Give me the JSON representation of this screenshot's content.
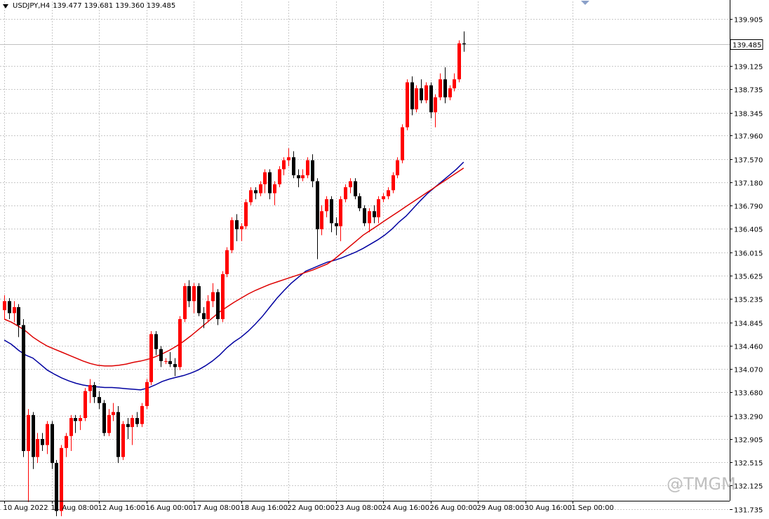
{
  "header": {
    "symbol": "USDJPY,H4",
    "ohlc": "139.477 139.681 139.360 139.485"
  },
  "watermark": "@TMGM",
  "colors": {
    "background": "#ffffff",
    "grid": "#c8c8c8",
    "bull_candle": "#ff0000",
    "bear_candle": "#000000",
    "ma_fast": "#0000a0",
    "ma_slow": "#dd0000",
    "price_line": "#c0c0c0"
  },
  "chart_data": {
    "type": "candlestick",
    "symbol": "USDJPY",
    "timeframe": "H4",
    "grid": true,
    "current_price": "139.485",
    "ylim": [
      131.87,
      140.2
    ],
    "y_ticks": [
      "139.905",
      "139.125",
      "138.735",
      "138.345",
      "137.960",
      "137.570",
      "137.180",
      "136.790",
      "136.405",
      "136.015",
      "135.625",
      "135.235",
      "134.845",
      "134.460",
      "134.070",
      "133.680",
      "133.290",
      "132.905",
      "132.515",
      "132.125",
      "131.735"
    ],
    "x_ticks": [
      {
        "i": 0,
        "label": "10 Aug 2022"
      },
      {
        "i": 10,
        "label": "11 Aug 08:00"
      },
      {
        "i": 20,
        "label": "12 Aug 16:00"
      },
      {
        "i": 30,
        "label": "16 Aug 00:00"
      },
      {
        "i": 40,
        "label": "17 Aug 08:00"
      },
      {
        "i": 50,
        "label": "18 Aug 16:00"
      },
      {
        "i": 60,
        "label": "22 Aug 00:00"
      },
      {
        "i": 70,
        "label": "23 Aug 08:00"
      },
      {
        "i": 80,
        "label": "24 Aug 16:00"
      },
      {
        "i": 90,
        "label": "26 Aug 00:00"
      },
      {
        "i": 100,
        "label": "29 Aug 08:00"
      },
      {
        "i": 110,
        "label": "30 Aug 16:00"
      },
      {
        "i": 120,
        "label": "1 Sep 00:00"
      }
    ],
    "candles": [
      [
        135.05,
        135.3,
        134.9,
        135.2
      ],
      [
        135.2,
        135.25,
        134.9,
        135.0
      ],
      [
        135.0,
        135.2,
        134.85,
        135.1
      ],
      [
        135.1,
        135.15,
        134.6,
        134.8
      ],
      [
        134.8,
        134.9,
        132.6,
        132.7
      ],
      [
        132.7,
        133.4,
        131.85,
        133.3
      ],
      [
        133.3,
        133.35,
        132.4,
        132.6
      ],
      [
        132.6,
        133.0,
        132.5,
        132.9
      ],
      [
        132.9,
        133.0,
        132.7,
        132.8
      ],
      [
        132.8,
        133.2,
        132.65,
        133.15
      ],
      [
        133.15,
        133.2,
        132.4,
        132.5
      ],
      [
        132.5,
        132.55,
        131.6,
        131.7
      ],
      [
        131.7,
        132.8,
        131.55,
        132.75
      ],
      [
        132.75,
        133.0,
        132.6,
        132.95
      ],
      [
        132.95,
        133.3,
        132.7,
        133.25
      ],
      [
        133.25,
        133.3,
        133.0,
        133.2
      ],
      [
        133.2,
        133.3,
        133.05,
        133.25
      ],
      [
        133.25,
        133.75,
        133.2,
        133.7
      ],
      [
        133.7,
        133.9,
        133.5,
        133.8
      ],
      [
        133.8,
        133.85,
        133.5,
        133.6
      ],
      [
        133.6,
        133.7,
        133.4,
        133.5
      ],
      [
        133.5,
        133.55,
        132.95,
        133.0
      ],
      [
        133.0,
        133.4,
        132.95,
        133.3
      ],
      [
        133.3,
        133.5,
        133.2,
        133.35
      ],
      [
        133.35,
        133.45,
        132.5,
        132.6
      ],
      [
        132.6,
        133.2,
        132.55,
        133.15
      ],
      [
        133.15,
        133.25,
        132.9,
        133.1
      ],
      [
        133.1,
        133.3,
        132.8,
        133.25
      ],
      [
        133.25,
        133.35,
        133.1,
        133.15
      ],
      [
        133.15,
        133.5,
        133.1,
        133.45
      ],
      [
        133.45,
        133.9,
        133.4,
        133.85
      ],
      [
        133.85,
        134.7,
        133.8,
        134.65
      ],
      [
        134.65,
        134.7,
        134.3,
        134.4
      ],
      [
        134.4,
        134.45,
        134.1,
        134.2
      ],
      [
        134.2,
        134.25,
        134.15,
        134.2
      ],
      [
        134.2,
        134.35,
        134.1,
        134.15
      ],
      [
        134.15,
        134.25,
        133.95,
        134.1
      ],
      [
        134.1,
        134.95,
        134.05,
        134.9
      ],
      [
        134.9,
        135.5,
        134.85,
        135.45
      ],
      [
        135.45,
        135.55,
        135.1,
        135.2
      ],
      [
        135.2,
        135.5,
        135.0,
        135.45
      ],
      [
        135.45,
        135.5,
        134.95,
        135.0
      ],
      [
        135.0,
        135.1,
        134.75,
        134.9
      ],
      [
        134.9,
        135.3,
        134.85,
        135.2
      ],
      [
        135.2,
        135.5,
        135.1,
        135.35
      ],
      [
        135.35,
        135.4,
        134.8,
        134.9
      ],
      [
        134.9,
        135.7,
        134.85,
        135.65
      ],
      [
        135.65,
        136.1,
        135.6,
        136.05
      ],
      [
        136.05,
        136.6,
        136.0,
        136.55
      ],
      [
        136.55,
        136.65,
        136.2,
        136.4
      ],
      [
        136.4,
        136.5,
        136.2,
        136.45
      ],
      [
        136.45,
        136.9,
        136.4,
        136.85
      ],
      [
        136.85,
        137.1,
        136.8,
        137.05
      ],
      [
        137.05,
        137.1,
        136.9,
        137.0
      ],
      [
        137.0,
        137.2,
        136.95,
        137.15
      ],
      [
        137.15,
        137.4,
        137.0,
        137.35
      ],
      [
        137.35,
        137.4,
        136.9,
        137.0
      ],
      [
        137.0,
        137.2,
        136.8,
        137.15
      ],
      [
        137.15,
        137.45,
        137.1,
        137.4
      ],
      [
        137.4,
        137.6,
        137.3,
        137.55
      ],
      [
        137.55,
        137.75,
        137.45,
        137.6
      ],
      [
        137.6,
        137.7,
        137.25,
        137.3
      ],
      [
        137.3,
        137.4,
        137.1,
        137.25
      ],
      [
        137.25,
        137.4,
        137.2,
        137.3
      ],
      [
        137.3,
        137.6,
        137.25,
        137.55
      ],
      [
        137.55,
        137.65,
        137.1,
        137.2
      ],
      [
        137.2,
        137.25,
        135.9,
        136.4
      ],
      [
        136.4,
        136.8,
        136.3,
        136.7
      ],
      [
        136.7,
        136.95,
        136.6,
        136.9
      ],
      [
        136.9,
        136.95,
        136.35,
        136.5
      ],
      [
        136.5,
        136.6,
        136.3,
        136.45
      ],
      [
        136.45,
        136.95,
        136.2,
        136.9
      ],
      [
        136.9,
        137.15,
        136.85,
        137.1
      ],
      [
        137.1,
        137.25,
        137.0,
        137.2
      ],
      [
        137.2,
        137.25,
        136.9,
        136.95
      ],
      [
        136.95,
        137.0,
        136.7,
        136.75
      ],
      [
        136.75,
        136.8,
        136.45,
        136.5
      ],
      [
        136.5,
        136.75,
        136.35,
        136.7
      ],
      [
        136.7,
        136.8,
        136.5,
        136.6
      ],
      [
        136.6,
        136.95,
        136.5,
        136.9
      ],
      [
        136.9,
        137.0,
        136.85,
        136.95
      ],
      [
        136.95,
        137.1,
        136.9,
        137.05
      ],
      [
        137.05,
        137.35,
        137.0,
        137.3
      ],
      [
        137.3,
        137.6,
        137.25,
        137.55
      ],
      [
        137.55,
        138.15,
        137.5,
        138.1
      ],
      [
        138.1,
        138.9,
        138.05,
        138.85
      ],
      [
        138.85,
        138.95,
        138.3,
        138.4
      ],
      [
        138.4,
        138.8,
        138.35,
        138.75
      ],
      [
        138.75,
        138.9,
        138.5,
        138.55
      ],
      [
        138.55,
        138.85,
        138.5,
        138.8
      ],
      [
        138.8,
        138.85,
        138.25,
        138.35
      ],
      [
        138.35,
        138.65,
        138.1,
        138.6
      ],
      [
        138.6,
        139.0,
        138.55,
        138.9
      ],
      [
        138.9,
        139.1,
        138.5,
        138.6
      ],
      [
        138.6,
        138.8,
        138.55,
        138.75
      ],
      [
        138.75,
        139.0,
        138.7,
        138.9
      ],
      [
        138.9,
        139.55,
        138.85,
        139.5
      ],
      [
        139.5,
        139.7,
        139.36,
        139.485
      ]
    ],
    "series": [
      {
        "role": "moving-average-fast",
        "color": "#0000a0",
        "values": [
          134.55,
          134.48,
          134.38,
          134.3,
          134.25,
          134.15,
          134.05,
          133.98,
          133.92,
          133.87,
          133.83,
          133.8,
          133.78,
          133.77,
          133.76,
          133.76,
          133.75,
          133.74,
          133.73,
          133.72,
          133.75,
          133.8,
          133.86,
          133.9,
          133.93,
          133.96,
          134.0,
          134.05,
          134.12,
          134.2,
          134.3,
          134.42,
          134.52,
          134.6,
          134.7,
          134.82,
          134.95,
          135.1,
          135.25,
          135.38,
          135.5,
          135.6,
          135.7,
          135.75,
          135.8,
          135.85,
          135.88,
          135.92,
          135.97,
          136.02,
          136.08,
          136.15,
          136.22,
          136.3,
          136.4,
          136.52,
          136.62,
          136.75,
          136.88,
          137.0,
          137.1,
          137.2,
          137.3,
          137.4,
          137.52
        ]
      },
      {
        "role": "moving-average-slow",
        "color": "#dd0000",
        "values": [
          134.9,
          134.85,
          134.78,
          134.7,
          134.6,
          134.52,
          134.45,
          134.4,
          134.35,
          134.3,
          134.25,
          134.2,
          134.16,
          134.13,
          134.12,
          134.12,
          134.13,
          134.15,
          134.18,
          134.2,
          134.23,
          134.27,
          134.32,
          134.38,
          134.45,
          134.53,
          134.62,
          134.72,
          134.82,
          134.92,
          135.02,
          135.1,
          135.18,
          135.25,
          135.32,
          135.38,
          135.43,
          135.48,
          135.52,
          135.56,
          135.6,
          135.64,
          135.68,
          135.72,
          135.77,
          135.82,
          135.9,
          136.0,
          136.1,
          136.2,
          136.3,
          136.38,
          136.46,
          136.54,
          136.62,
          136.7,
          136.78,
          136.86,
          136.94,
          137.02,
          137.1,
          137.18,
          137.26,
          137.34,
          137.42
        ]
      }
    ]
  }
}
